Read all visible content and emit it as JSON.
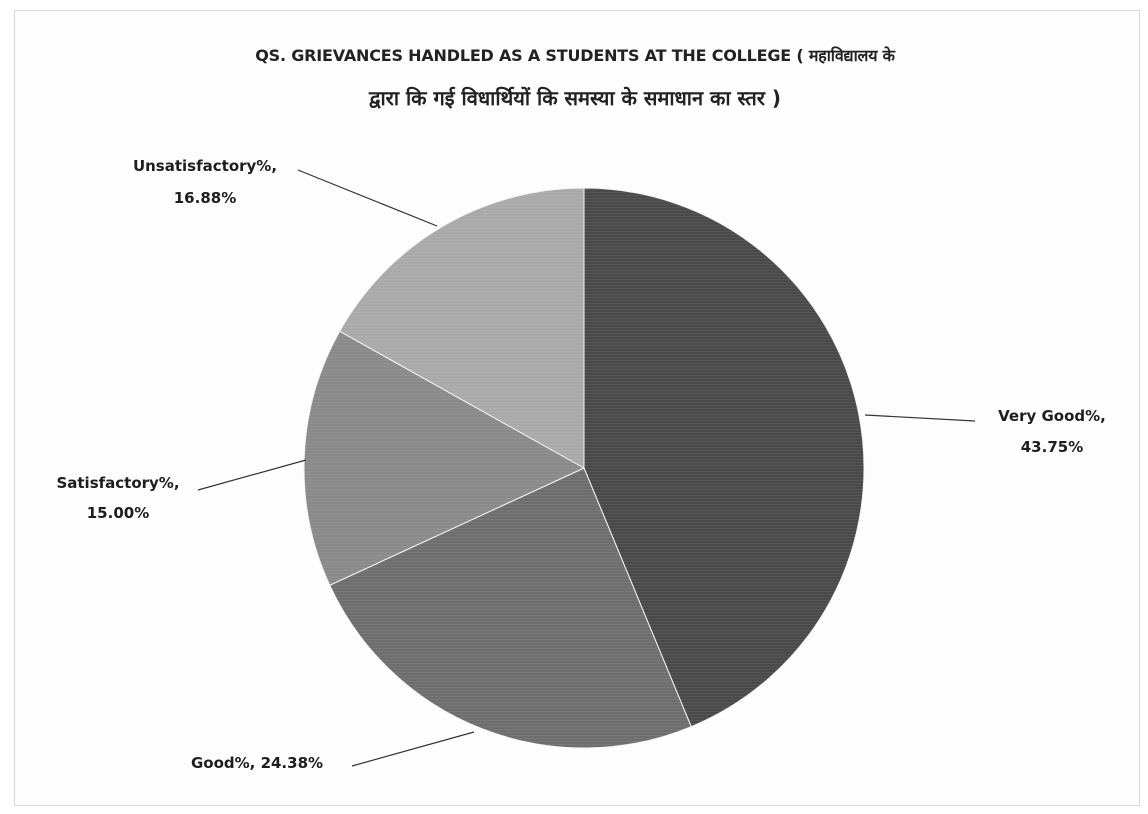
{
  "chart_data": {
    "type": "pie",
    "title_line1": "QS. GRIEVANCES HANDLED AS A STUDENTS AT THE COLLEGE ( महाविद्यालय के",
    "title_line2": "द्वारा कि गई विधार्थियों कि समस्या के समाधान का स्तर )",
    "slices": [
      {
        "name": "Very Good%",
        "label": "Very Good%,",
        "value_label": "43.75%",
        "value": 43.75,
        "color": "#4a4a4a"
      },
      {
        "name": "Good%",
        "label": "Good%, 24.38%",
        "value_label": "",
        "value": 24.38,
        "color": "#6e6e6e"
      },
      {
        "name": "Satisfactory%",
        "label": "Satisfactory%,",
        "value_label": "15.00%",
        "value": 15.0,
        "color": "#8a8a8a"
      },
      {
        "name": "Unsatisfactory%",
        "label": "Unsatisfactory%,",
        "value_label": "16.88%",
        "value": 16.88,
        "color": "#a9a9a9"
      }
    ],
    "legend": "none",
    "start": "12 o'clock",
    "direction": "clockwise"
  }
}
